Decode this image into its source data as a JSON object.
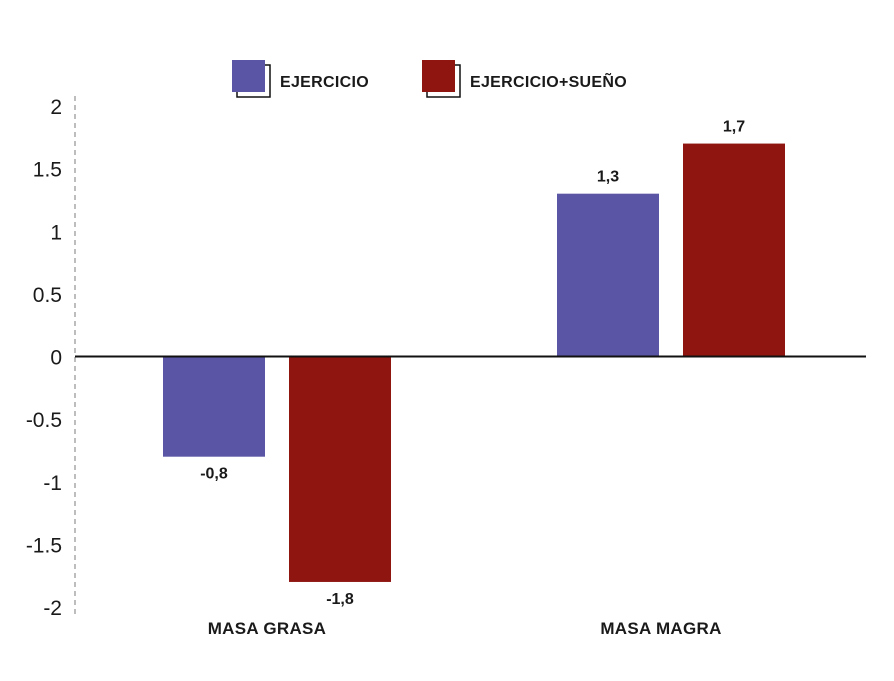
{
  "chart_data": {
    "type": "bar",
    "categories": [
      "MASA GRASA",
      "MASA MAGRA"
    ],
    "series": [
      {
        "name": "EJERCICIO",
        "values": [
          -0.8,
          1.3
        ],
        "labels": [
          "-0,8",
          "1,3"
        ],
        "color": "#5b55a5"
      },
      {
        "name": "EJERCICIO+SUEÑO",
        "values": [
          -1.8,
          1.7
        ],
        "labels": [
          "-1,8",
          "1,7"
        ],
        "color": "#8e1510"
      }
    ],
    "yticks": [
      "2",
      "1.5",
      "1",
      "0.5",
      "0",
      "-0.5",
      "-1",
      "-1.5",
      "-2"
    ],
    "ylim": [
      -2,
      2
    ],
    "title": "",
    "xlabel": "",
    "ylabel": "",
    "legend": "top-center",
    "grid": false
  }
}
